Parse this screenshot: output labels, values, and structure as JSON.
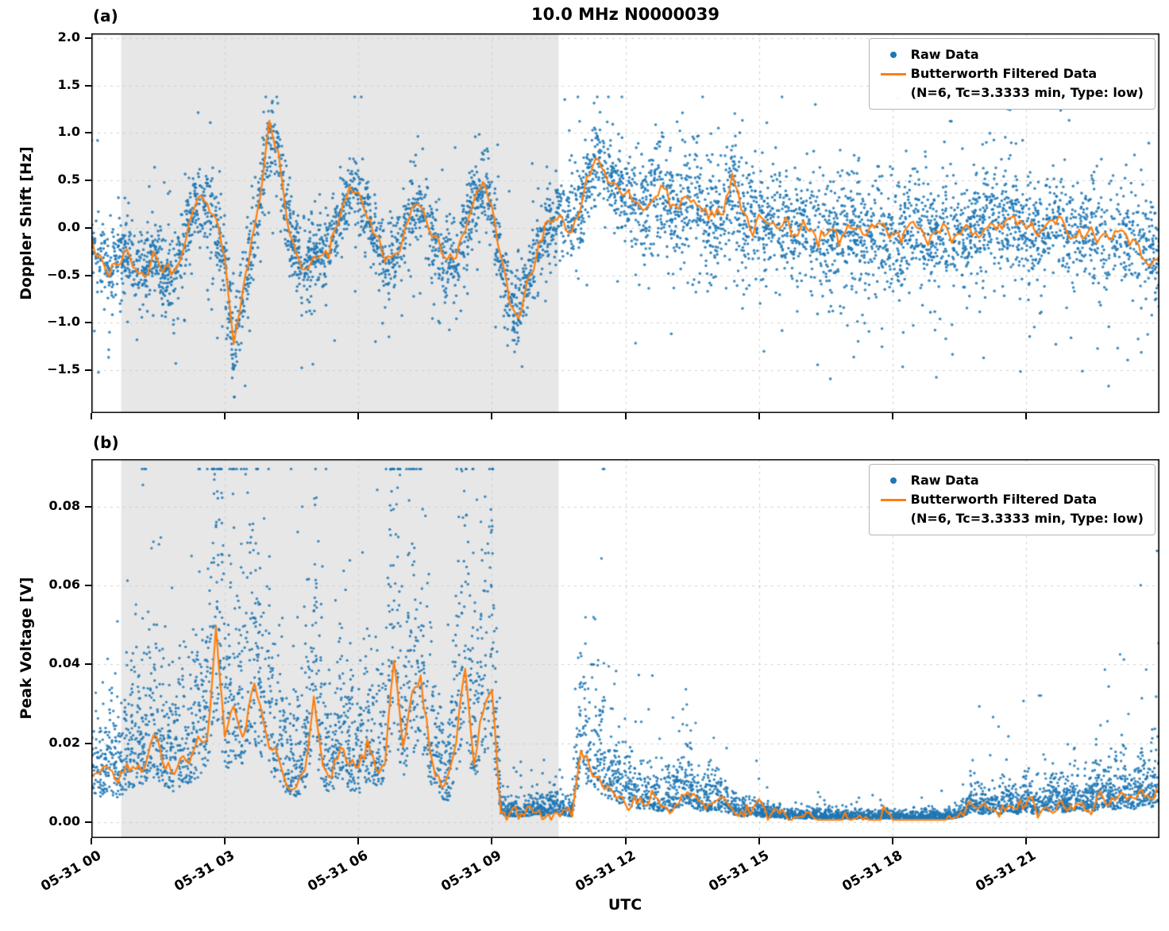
{
  "figure": {
    "title": "10.0 MHz N0000039",
    "xlabel": "UTC"
  },
  "legend": {
    "raw_label": "Raw Data",
    "filtered_label": "Butterworth Filtered Data",
    "filtered_params": "(N=6, Tc=3.3333 min, Type: low)"
  },
  "colors": {
    "raw": "#1f77b4",
    "filtered": "#ff7f0e",
    "shaded": "#e7e7e7",
    "grid": "#cfcfcf",
    "spine": "#000000"
  },
  "chart_data": [
    {
      "id": "a",
      "type": "scatter",
      "panel_label": "(a)",
      "ylabel": "Doppler Shift [Hz]",
      "ylim": [
        -1.95,
        2.05
      ],
      "ytick_values": [
        2.0,
        1.5,
        1.0,
        0.5,
        0.0,
        -0.5,
        -1.0,
        -1.5
      ],
      "ytick_labels": [
        "2.0",
        "1.5",
        "1.0",
        "0.5",
        "0.0",
        "−0.5",
        "−1.0",
        "−1.5"
      ],
      "xlim_hours": [
        0,
        24
      ],
      "xticks_hours": [
        0,
        3,
        6,
        9,
        12,
        15,
        18,
        21
      ],
      "xtick_labels": [
        "05-31 00",
        "05-31 03",
        "05-31 06",
        "05-31 09",
        "05-31 12",
        "05-31 15",
        "05-31 18",
        "05-31 21"
      ],
      "shaded_region_hours": [
        0.67,
        10.5
      ],
      "series": [
        {
          "name": "Raw Data",
          "type": "scatter",
          "color": "#1f77b4"
        },
        {
          "name": "Butterworth Filtered Data (N=6, Tc=3.3333 min, Type: low)",
          "type": "line",
          "color": "#ff7f0e"
        }
      ],
      "line": {
        "x_start": 0,
        "x_step": 0.2,
        "wiggle": 0.045,
        "y": [
          -0.1,
          -0.3,
          -0.45,
          -0.35,
          -0.25,
          -0.4,
          -0.45,
          -0.3,
          -0.45,
          -0.5,
          -0.25,
          0.1,
          0.28,
          0.2,
          0.05,
          -0.45,
          -1.3,
          -0.75,
          -0.25,
          0.3,
          1.1,
          0.75,
          0.1,
          -0.3,
          -0.4,
          -0.25,
          -0.3,
          -0.15,
          0.1,
          0.4,
          0.35,
          0.2,
          -0.1,
          -0.4,
          -0.3,
          -0.05,
          0.2,
          0.25,
          0.05,
          -0.2,
          -0.35,
          -0.25,
          0.0,
          0.3,
          0.45,
          0.15,
          -0.3,
          -0.7,
          -0.9,
          -0.6,
          -0.25,
          0.0,
          0.1,
          0.15,
          0.1,
          0.2,
          0.6,
          0.8,
          0.55,
          0.45,
          0.35,
          0.3,
          0.25,
          0.35,
          0.45,
          0.25,
          0.15,
          0.4,
          0.25,
          0.15,
          0.1,
          0.2,
          0.5,
          0.15,
          0.05,
          0.1,
          0.05,
          0.0,
          0.05,
          -0.05,
          0.05,
          0.0,
          -0.05,
          0.0,
          -0.1,
          -0.05,
          0.0,
          -0.1,
          -0.05,
          0.0,
          -0.05,
          -0.1,
          0.0,
          -0.05,
          -0.15,
          -0.05,
          0.0,
          -0.1,
          -0.05,
          0.0,
          -0.05,
          0.05,
          0.0,
          0.1,
          0.05,
          -0.05,
          0.0,
          -0.05,
          0.05,
          0.0,
          -0.1,
          -0.05,
          0.0,
          -0.05,
          -0.1,
          -0.05,
          -0.15,
          -0.1,
          -0.2,
          -0.25,
          -0.3
        ]
      },
      "scatter": {
        "mode": "band",
        "seed": 1337,
        "n_points": 5500,
        "point_radius": 1.8,
        "halo_rate": 0.12,
        "halo_mult": 2.2,
        "outlier_rate": 0.018,
        "clamp": [
          -1.78,
          1.38
        ],
        "envelope_x": [
          0,
          2,
          3,
          4,
          5,
          7,
          9,
          10.5,
          11,
          12,
          13,
          14,
          16,
          18,
          20,
          22,
          24
        ],
        "envelope_spread": [
          0.18,
          0.2,
          0.22,
          0.22,
          0.18,
          0.18,
          0.2,
          0.18,
          0.22,
          0.26,
          0.3,
          0.3,
          0.28,
          0.28,
          0.28,
          0.26,
          0.25
        ]
      }
    },
    {
      "id": "b",
      "type": "scatter",
      "panel_label": "(b)",
      "ylabel": "Peak Voltage [V]",
      "ylim": [
        -0.004,
        0.092
      ],
      "ytick_values": [
        0.08,
        0.06,
        0.04,
        0.02,
        0.0
      ],
      "ytick_labels": [
        "0.08",
        "0.06",
        "0.04",
        "0.02",
        "0.00"
      ],
      "xlim_hours": [
        0,
        24
      ],
      "xticks_hours": [
        0,
        3,
        6,
        9,
        12,
        15,
        18,
        21
      ],
      "xtick_labels": [
        "05-31 00",
        "05-31 03",
        "05-31 06",
        "05-31 09",
        "05-31 12",
        "05-31 15",
        "05-31 18",
        "05-31 21"
      ],
      "shaded_region_hours": [
        0.67,
        10.5
      ],
      "series": [
        {
          "name": "Raw Data",
          "type": "scatter",
          "color": "#1f77b4"
        },
        {
          "name": "Butterworth Filtered Data (N=6, Tc=3.3333 min, Type: low)",
          "type": "line",
          "color": "#ff7f0e"
        }
      ],
      "line": {
        "x_start": 0,
        "x_step": 0.2,
        "wiggle": 0.0012,
        "y": [
          0.012,
          0.011,
          0.013,
          0.01,
          0.014,
          0.016,
          0.013,
          0.018,
          0.015,
          0.013,
          0.016,
          0.014,
          0.02,
          0.022,
          0.05,
          0.022,
          0.028,
          0.025,
          0.035,
          0.03,
          0.022,
          0.018,
          0.012,
          0.01,
          0.015,
          0.032,
          0.015,
          0.012,
          0.02,
          0.014,
          0.012,
          0.018,
          0.014,
          0.016,
          0.042,
          0.02,
          0.03,
          0.035,
          0.018,
          0.012,
          0.008,
          0.02,
          0.037,
          0.015,
          0.03,
          0.033,
          0.003,
          0.002,
          0.002,
          0.002,
          0.003,
          0.002,
          0.004,
          0.002,
          0.002,
          0.02,
          0.015,
          0.012,
          0.01,
          0.008,
          0.007,
          0.006,
          0.005,
          0.005,
          0.004,
          0.004,
          0.006,
          0.008,
          0.005,
          0.004,
          0.005,
          0.004,
          0.003,
          0.002,
          0.002,
          0.002,
          0.0015,
          0.0015,
          0.001,
          0.001,
          0.001,
          0.001,
          0.001,
          0.001,
          0.001,
          0.001,
          0.001,
          0.001,
          0.001,
          0.001,
          0.001,
          0.001,
          0.001,
          0.001,
          0.001,
          0.001,
          0.001,
          0.001,
          0.002,
          0.004,
          0.003,
          0.003,
          0.003,
          0.004,
          0.003,
          0.004,
          0.003,
          0.004,
          0.005,
          0.004,
          0.004,
          0.005,
          0.004,
          0.005,
          0.006,
          0.005,
          0.006,
          0.005,
          0.007,
          0.006,
          0.008
        ]
      },
      "scatter": {
        "mode": "positive",
        "seed": 4242,
        "n_points": 6200,
        "point_radius": 1.7,
        "base_scale": 0.55,
        "abs_gauss_scale": 1.05,
        "floor_add": 0.0004,
        "spike_rate": 0.035,
        "spike_mult_min": 1.8,
        "spike_mult_span": 2.2,
        "big_spike_rate": 0.008,
        "big_spike_min": 2.5,
        "big_spike_span": 3.5,
        "clamp": [
          0.0003,
          0.0895
        ]
      }
    }
  ]
}
